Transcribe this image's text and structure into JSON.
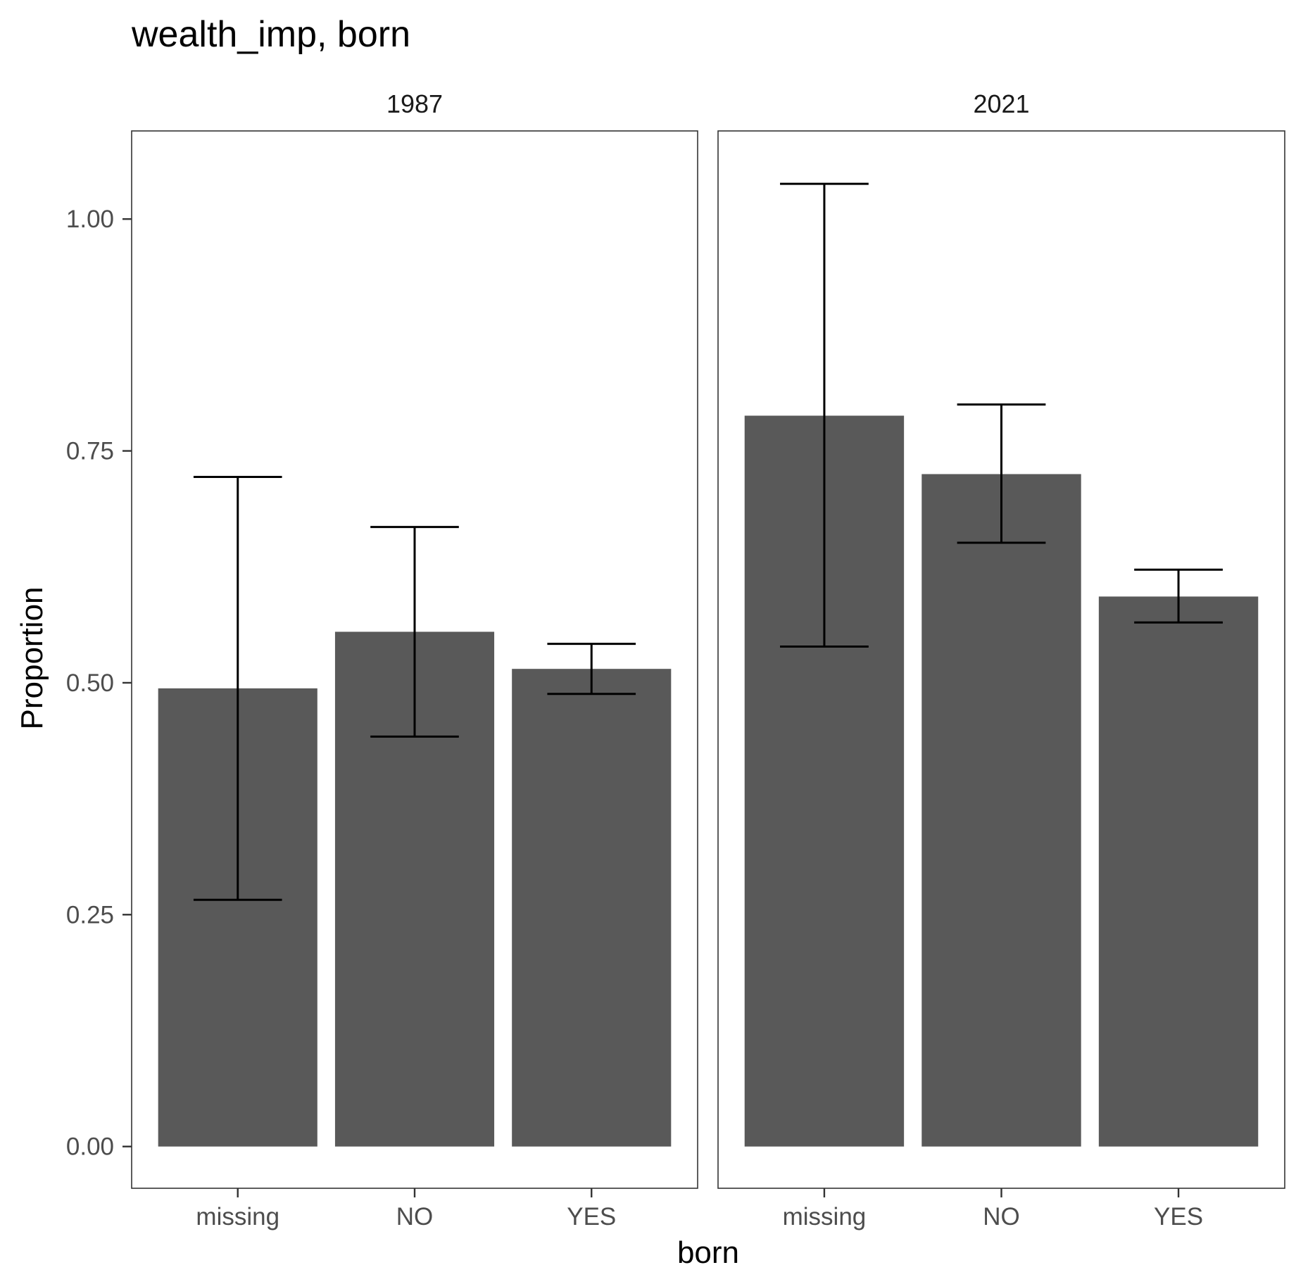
{
  "chart_data": {
    "type": "bar",
    "title": "wealth_imp, born",
    "xlabel": "born",
    "ylabel": "Proportion",
    "ylim": [
      -0.045,
      1.095
    ],
    "y_ticks": [
      0,
      0.25,
      0.5,
      0.75,
      1.0
    ],
    "y_tick_labels": [
      "0.00",
      "0.25",
      "0.50",
      "0.75",
      "1.00"
    ],
    "categories": [
      "missing",
      "NO",
      "YES"
    ],
    "grid": false,
    "facets": [
      {
        "label": "1987",
        "bars": [
          {
            "category": "missing",
            "value": 0.494,
            "lower": 0.266,
            "upper": 0.722
          },
          {
            "category": "NO",
            "value": 0.555,
            "lower": 0.442,
            "upper": 0.668
          },
          {
            "category": "YES",
            "value": 0.515,
            "lower": 0.488,
            "upper": 0.542
          }
        ]
      },
      {
        "label": "2021",
        "bars": [
          {
            "category": "missing",
            "value": 0.788,
            "lower": 0.539,
            "upper": 1.038
          },
          {
            "category": "NO",
            "value": 0.725,
            "lower": 0.651,
            "upper": 0.8
          },
          {
            "category": "YES",
            "value": 0.593,
            "lower": 0.565,
            "upper": 0.622
          }
        ]
      }
    ]
  }
}
